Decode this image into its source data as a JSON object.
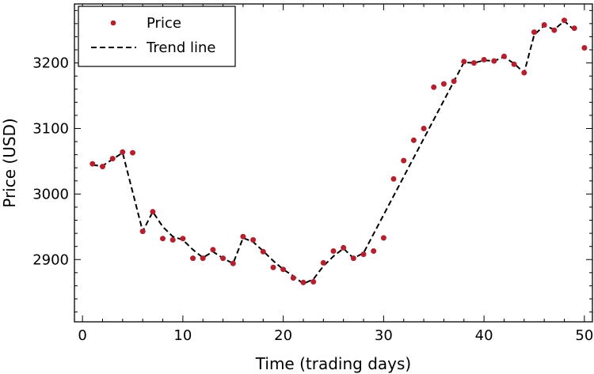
{
  "chart_data": {
    "type": "scatter",
    "xlabel": "Time (trading days)",
    "ylabel": "Price (USD)",
    "xlim": [
      -0.8,
      50.8
    ],
    "ylim": [
      2805,
      3290
    ],
    "x_major_ticks": [
      0,
      10,
      20,
      30,
      40,
      50
    ],
    "y_major_ticks": [
      2900,
      3000,
      3100,
      3200
    ],
    "x_minor_step": 2,
    "y_minor_step": 20,
    "x_tick_labels": [
      "0",
      "10",
      "20",
      "30",
      "40",
      "50"
    ],
    "y_tick_labels": [
      "2900",
      "3000",
      "3100",
      "3200"
    ],
    "legend_position": "top-left",
    "series": [
      {
        "name": "Price",
        "kind": "scatter",
        "color": "#b5202e",
        "x": [
          1,
          2,
          3,
          4,
          5,
          6,
          7,
          8,
          9,
          10,
          11,
          12,
          13,
          14,
          15,
          16,
          17,
          18,
          19,
          20,
          21,
          22,
          23,
          24,
          25,
          26,
          27,
          28,
          29,
          30,
          31,
          32,
          33,
          34,
          35,
          36,
          37,
          38,
          39,
          40,
          41,
          42,
          43,
          44,
          45,
          46,
          47,
          48,
          49,
          50
        ],
        "y": [
          3046,
          3042,
          3054,
          3064,
          3063,
          2943,
          2973,
          2932,
          2930,
          2932,
          2902,
          2902,
          2915,
          2902,
          2894,
          2935,
          2930,
          2912,
          2888,
          2885,
          2872,
          2865,
          2866,
          2895,
          2913,
          2918,
          2902,
          2908,
          2913,
          2933,
          3023,
          3051,
          3082,
          3100,
          3163,
          3168,
          3172,
          3202,
          3200,
          3205,
          3203,
          3210,
          3198,
          3185,
          3247,
          3258,
          3250,
          3265,
          3253,
          3223
        ]
      },
      {
        "name": "Trend line",
        "kind": "line",
        "style": "dashed",
        "color": "#000000",
        "x": [
          1,
          2,
          3,
          4,
          6,
          7,
          8,
          9,
          10,
          11,
          12,
          13,
          14,
          15,
          16,
          17,
          18,
          19,
          20,
          21,
          22,
          23,
          24,
          25,
          26,
          27,
          28,
          38,
          39,
          40,
          41,
          42,
          43,
          44,
          45,
          46,
          47,
          48,
          49
        ],
        "y": [
          3044,
          3043,
          3053,
          3063,
          2943,
          2973,
          2950,
          2935,
          2930,
          2915,
          2903,
          2912,
          2902,
          2894,
          2933,
          2927,
          2913,
          2898,
          2885,
          2875,
          2863,
          2870,
          2890,
          2905,
          2917,
          2902,
          2910,
          3201,
          3200,
          3204,
          3203,
          3209,
          3199,
          3185,
          3243,
          3257,
          3251,
          3264,
          3250
        ]
      }
    ]
  }
}
